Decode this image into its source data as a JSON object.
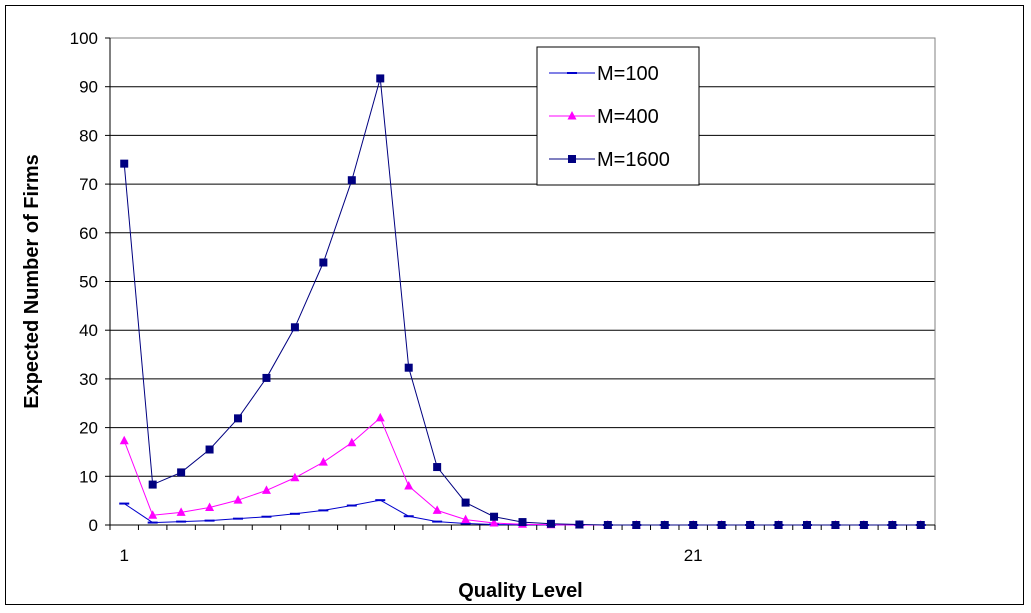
{
  "chart_data": {
    "type": "line",
    "title": "",
    "xlabel": "Quality Level",
    "ylabel": "Expected Number of Firms",
    "xlim": [
      1,
      29
    ],
    "ylim": [
      0,
      100
    ],
    "yticks": [
      0,
      10,
      20,
      30,
      40,
      50,
      60,
      70,
      80,
      90,
      100
    ],
    "x_tick_labels": [
      {
        "x": 1,
        "label": "1"
      },
      {
        "x": 21,
        "label": "21"
      }
    ],
    "grid": "horizontal",
    "legend_position": "top-right",
    "x": [
      1,
      2,
      3,
      4,
      5,
      6,
      7,
      8,
      9,
      10,
      11,
      12,
      13,
      14,
      15,
      16,
      17,
      18,
      19,
      20,
      21,
      22,
      23,
      24,
      25,
      26,
      27,
      28,
      29
    ],
    "series": [
      {
        "name": "M=100",
        "color": "#0000cc",
        "marker": "dash",
        "values": [
          4.4,
          0.5,
          0.7,
          0.9,
          1.3,
          1.7,
          2.3,
          3.0,
          4.0,
          5.1,
          1.8,
          0.7,
          0.3,
          0.1,
          0.05,
          0.02,
          0,
          0,
          0,
          0,
          0,
          0,
          0,
          0,
          0,
          0,
          0,
          0,
          0
        ]
      },
      {
        "name": "M=400",
        "color": "#ff00ff",
        "marker": "triangle",
        "values": [
          17.3,
          2.0,
          2.6,
          3.6,
          5.1,
          7.1,
          9.7,
          12.9,
          16.9,
          22.0,
          8.0,
          3.0,
          1.1,
          0.4,
          0.15,
          0.05,
          0,
          0,
          0,
          0,
          0,
          0,
          0,
          0,
          0,
          0,
          0,
          0,
          0
        ]
      },
      {
        "name": "M=1600",
        "color": "#000080",
        "marker": "square",
        "values": [
          74.2,
          8.3,
          10.8,
          15.5,
          21.9,
          30.2,
          40.6,
          53.9,
          70.8,
          91.7,
          32.3,
          11.9,
          4.6,
          1.7,
          0.6,
          0.25,
          0.1,
          0,
          0,
          0,
          0,
          0,
          0,
          0,
          0,
          0,
          0,
          0,
          0
        ]
      }
    ]
  }
}
